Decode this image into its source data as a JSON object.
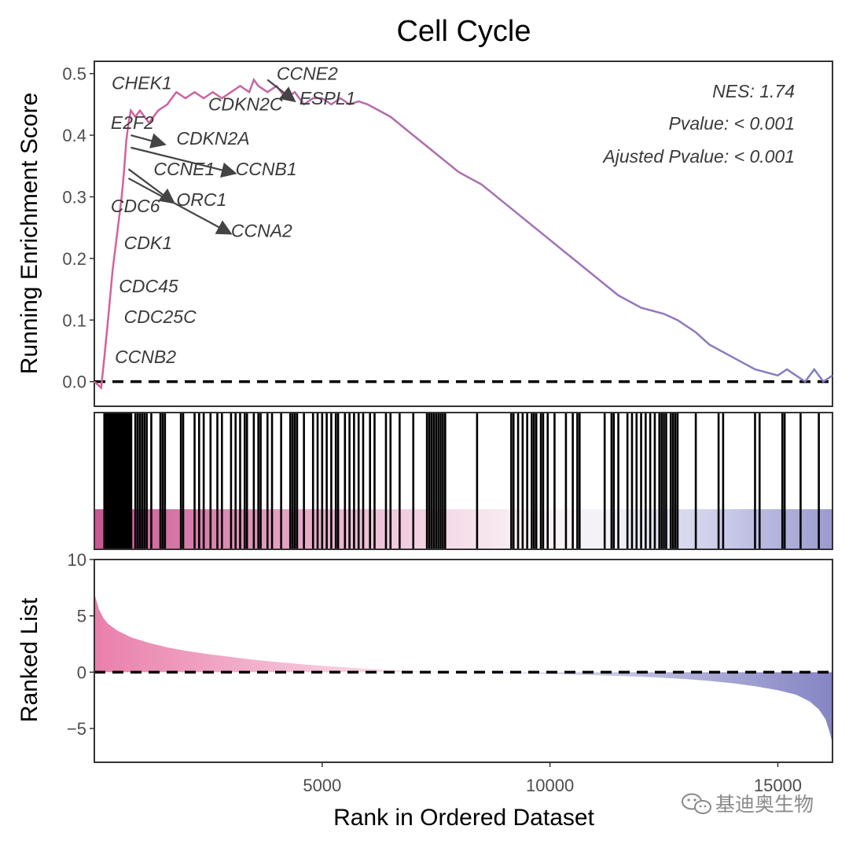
{
  "chart_data": {
    "type": "line",
    "title": "Cell Cycle",
    "x_label": "Rank in Ordered Dataset",
    "x_range": [
      0,
      16200
    ],
    "x_ticks": [
      5000,
      10000,
      15000
    ],
    "running_es": {
      "y_label": "Running Enrichment Score",
      "y_range": [
        -0.04,
        0.52
      ],
      "y_ticks": [
        "0.0",
        "0.1",
        "0.2",
        "0.3",
        "0.4",
        "0.5"
      ],
      "y_tick_values": [
        0.0,
        0.1,
        0.2,
        0.3,
        0.4,
        0.5
      ],
      "baseline": 0.0,
      "x": [
        0,
        150,
        220,
        300,
        400,
        500,
        600,
        650,
        700,
        750,
        800,
        900,
        1000,
        1200,
        1400,
        1600,
        1800,
        2000,
        2200,
        2400,
        2600,
        2800,
        3000,
        3200,
        3400,
        3500,
        3600,
        3800,
        4000,
        4200,
        4400,
        4600,
        4800,
        5000,
        5200,
        5400,
        5600,
        5800,
        6000,
        6500,
        7000,
        7500,
        8000,
        8500,
        9000,
        9500,
        10000,
        10500,
        11000,
        11500,
        12000,
        12500,
        12800,
        13200,
        13500,
        14000,
        14500,
        15000,
        15200,
        15400,
        15600,
        15800,
        16000,
        16200
      ],
      "y": [
        0.0,
        -0.01,
        0.04,
        0.1,
        0.18,
        0.24,
        0.3,
        0.34,
        0.39,
        0.42,
        0.44,
        0.43,
        0.44,
        0.42,
        0.44,
        0.45,
        0.47,
        0.46,
        0.47,
        0.46,
        0.47,
        0.46,
        0.47,
        0.48,
        0.47,
        0.49,
        0.48,
        0.47,
        0.48,
        0.46,
        0.47,
        0.45,
        0.46,
        0.46,
        0.45,
        0.46,
        0.45,
        0.455,
        0.45,
        0.43,
        0.4,
        0.37,
        0.34,
        0.32,
        0.29,
        0.26,
        0.23,
        0.2,
        0.17,
        0.14,
        0.12,
        0.11,
        0.1,
        0.08,
        0.06,
        0.04,
        0.02,
        0.01,
        0.02,
        0.01,
        0.0,
        0.02,
        0.0,
        0.01
      ],
      "color_start": "#d6609a",
      "color_end": "#7f7fc4",
      "nes_text": "NES: 1.74",
      "pvalue_text": "Pvalue: < 0.001",
      "adj_pvalue_text": "Ajusted Pvalue: < 0.001",
      "annotations": [
        {
          "label": "CHEK1",
          "x": 380,
          "y": 0.475
        },
        {
          "label": "E2F2",
          "x": 360,
          "y": 0.41
        },
        {
          "label": "CDC6",
          "x": 360,
          "y": 0.275
        },
        {
          "label": "CDK1",
          "x": 650,
          "y": 0.215
        },
        {
          "label": "CDC45",
          "x": 540,
          "y": 0.145
        },
        {
          "label": "CDC25C",
          "x": 650,
          "y": 0.095
        },
        {
          "label": "CCNB2",
          "x": 450,
          "y": 0.03
        },
        {
          "label": "CDKN2C",
          "x": 2500,
          "y": 0.44
        },
        {
          "label": "CCNE2",
          "x": 4000,
          "y": 0.49
        },
        {
          "label": "ESPL1",
          "x": 4500,
          "y": 0.45
        },
        {
          "label": "CDKN2A",
          "x": 1800,
          "y": 0.385
        },
        {
          "label": "CCNE1",
          "x": 1300,
          "y": 0.335
        },
        {
          "label": "CCNB1",
          "x": 3100,
          "y": 0.335
        },
        {
          "label": "ORC1",
          "x": 1800,
          "y": 0.285
        },
        {
          "label": "CCNA2",
          "x": 3000,
          "y": 0.235
        }
      ],
      "arrows": [
        {
          "from": [
            800,
            0.4
          ],
          "to": [
            1550,
            0.385
          ]
        },
        {
          "from": [
            800,
            0.38
          ],
          "to": [
            3100,
            0.338
          ]
        },
        {
          "from": [
            750,
            0.345
          ],
          "to": [
            1750,
            0.29
          ]
        },
        {
          "from": [
            750,
            0.33
          ],
          "to": [
            3000,
            0.24
          ]
        },
        {
          "from": [
            3800,
            0.49
          ],
          "to": [
            4400,
            0.455
          ]
        }
      ]
    },
    "hit_positions": [
      220,
      260,
      300,
      330,
      360,
      390,
      420,
      450,
      480,
      510,
      540,
      570,
      600,
      630,
      660,
      690,
      720,
      750,
      780,
      810,
      900,
      950,
      1000,
      1050,
      1100,
      1150,
      1250,
      1450,
      1500,
      1550,
      1900,
      1950,
      2200,
      2300,
      2400,
      2550,
      2700,
      2800,
      3000,
      3100,
      3200,
      3300,
      3350,
      3500,
      3600,
      3650,
      3800,
      3900,
      4100,
      4300,
      4350,
      4400,
      4450,
      4600,
      4800,
      4900,
      5000,
      5100,
      5200,
      5300,
      5350,
      5500,
      5600,
      5700,
      5800,
      5900,
      6050,
      6150,
      6400,
      6500,
      6700,
      7000,
      7300,
      7350,
      7400,
      7450,
      7500,
      7550,
      7600,
      7650,
      7700,
      8400,
      9150,
      9200,
      9300,
      9400,
      9500,
      9600,
      9650,
      9700,
      9800,
      9850,
      9950,
      10100,
      10350,
      10500,
      10600,
      10650,
      11200,
      11350,
      11400,
      11500,
      11700,
      11800,
      11900,
      12000,
      12100,
      12200,
      12300,
      12400,
      12450,
      12500,
      12550,
      12650,
      12700,
      12750,
      12800,
      13200,
      13700,
      13800,
      14500,
      14600,
      15100,
      15150,
      15500,
      15900
    ],
    "ranked_list": {
      "y_label": "Ranked List",
      "y_range": [
        -8,
        10
      ],
      "y_ticks": [
        "10",
        "5",
        "0",
        "−5"
      ],
      "y_tick_values": [
        10,
        5,
        0,
        -5
      ],
      "baseline": 0,
      "x": [
        0,
        50,
        100,
        200,
        300,
        500,
        800,
        1200,
        1600,
        2000,
        2500,
        3000,
        3500,
        4000,
        4500,
        5000,
        5500,
        6000,
        6500,
        7000,
        7500,
        8000,
        8500,
        9000,
        9500,
        10000,
        10500,
        11000,
        11500,
        12000,
        12500,
        13000,
        13500,
        14000,
        14500,
        15000,
        15400,
        15700,
        15900,
        16050,
        16150,
        16200
      ],
      "y": [
        7.0,
        6.3,
        5.6,
        4.8,
        4.3,
        3.7,
        3.1,
        2.6,
        2.2,
        1.9,
        1.6,
        1.35,
        1.1,
        0.9,
        0.72,
        0.56,
        0.42,
        0.3,
        0.2,
        0.12,
        0.05,
        0.0,
        -0.05,
        -0.1,
        -0.14,
        -0.18,
        -0.22,
        -0.27,
        -0.33,
        -0.4,
        -0.5,
        -0.62,
        -0.78,
        -0.98,
        -1.25,
        -1.6,
        -2.0,
        -2.6,
        -3.3,
        -4.2,
        -5.5,
        -6.3
      ],
      "pos_color": "#e58ab0",
      "neg_color": "#8d8dc9"
    },
    "watermark": "基迪奥生物"
  }
}
